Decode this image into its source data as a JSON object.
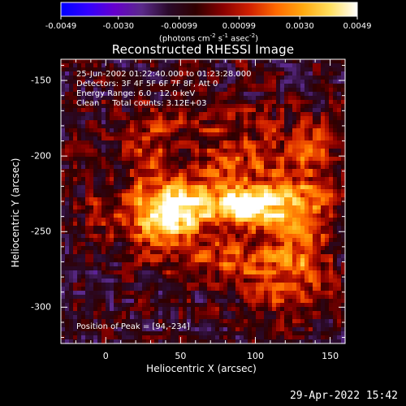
{
  "colorbar": {
    "tick_labels": [
      "-0.0049",
      "-0.0030",
      "-0.00099",
      "0.00099",
      "0.0030",
      "0.0049"
    ],
    "units_text": "(photons cm",
    "units_parts": {
      "a": "(photons cm",
      "a_sup": "-2",
      "b": " s",
      "b_sup": "-1",
      "c": " asec",
      "c_sup": "-2",
      "d": ")"
    },
    "colormap": "RHESSI red-temperature with negative blue/purple",
    "colors": [
      "#0000ff",
      "#3300ff",
      "#6600cc",
      "#5a2a8a",
      "#2a0a2a",
      "#300000",
      "#880000",
      "#d02000",
      "#ff6a00",
      "#ffaa10",
      "#ffe060",
      "#ffffff"
    ]
  },
  "plot": {
    "title": "Reconstructed RHESSI Image",
    "info": {
      "time_range": "25-Jun-2002 01:22:40.000 to 01:23:28.000",
      "detectors": "Detectors: 3F 4F 5F 6F 7F 8F, Att 0",
      "energy": "Energy Range: 6.0 - 12.0 keV",
      "clean": "Clean     Total counts: 3.12E+03"
    },
    "peak": "Position of Peak = [94,-234]",
    "xlabel": "Heliocentric X (arcsec)",
    "ylabel": "Heliocentric Y (arcsec)",
    "x_ticks": [
      "0",
      "50",
      "100",
      "150"
    ],
    "y_ticks": [
      "-150",
      "-200",
      "-250",
      "-300"
    ]
  },
  "chart_data": {
    "type": "heatmap",
    "title": "Reconstructed RHESSI Image",
    "xlabel": "Heliocentric X (arcsec)",
    "ylabel": "Heliocentric Y (arcsec)",
    "xlim": [
      -30,
      160
    ],
    "ylim": [
      -324,
      -136
    ],
    "zlim": [
      -0.0049,
      0.0049
    ],
    "peak": {
      "x": 94,
      "y": -234
    },
    "sources": [
      {
        "x": 94,
        "y": -234,
        "amp": 1.0,
        "sx": 10,
        "sy": 8
      },
      {
        "x": 60,
        "y": -232,
        "amp": 0.95,
        "sx": 22,
        "sy": 12
      },
      {
        "x": 38,
        "y": -242,
        "amp": 0.75,
        "sx": 14,
        "sy": 12
      },
      {
        "x": 120,
        "y": -232,
        "amp": 0.7,
        "sx": 20,
        "sy": 11
      },
      {
        "x": 75,
        "y": -268,
        "amp": 0.45,
        "sx": 30,
        "sy": 10
      },
      {
        "x": 130,
        "y": -260,
        "amp": 0.55,
        "sx": 14,
        "sy": 22
      },
      {
        "x": 100,
        "y": -205,
        "amp": 0.4,
        "sx": 30,
        "sy": 10
      },
      {
        "x": 28,
        "y": -205,
        "amp": 0.35,
        "sx": 10,
        "sy": 25
      },
      {
        "x": 0,
        "y": -237,
        "amp": 0.3,
        "sx": 12,
        "sy": 12
      },
      {
        "x": 80,
        "y": -180,
        "amp": 0.25,
        "sx": 40,
        "sy": 14
      },
      {
        "x": 115,
        "y": -290,
        "amp": 0.3,
        "sx": 20,
        "sy": 14
      },
      {
        "x": 140,
        "y": -198,
        "amp": 0.3,
        "sx": 10,
        "sy": 14
      }
    ],
    "noise_amp": 0.35,
    "noise_seed": 42
  },
  "footer": {
    "date": "29-Apr-2022 15:42"
  }
}
